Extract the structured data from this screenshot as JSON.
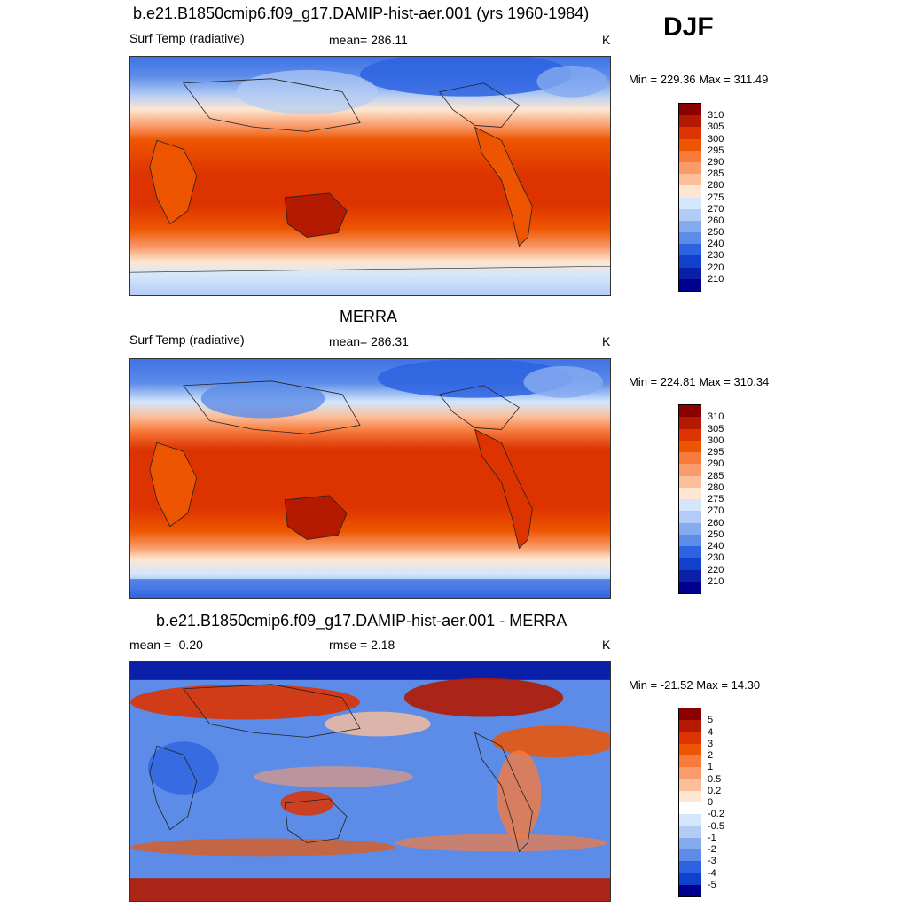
{
  "season": "DJF",
  "panels": [
    {
      "title": "b.e21.B1850cmip6.f09_g17.DAMIP-hist-aer.001 (yrs 1960-1984)",
      "left_label": "Surf Temp (radiative)",
      "center_label": "mean= 286.11",
      "units": "K",
      "minmax": "Min = 229.36 Max = 311.49",
      "colorbar_labels": [
        "310",
        "305",
        "300",
        "295",
        "290",
        "285",
        "280",
        "275",
        "270",
        "260",
        "250",
        "240",
        "230",
        "220",
        "210"
      ],
      "colors": [
        "#8b0000",
        "#b31a00",
        "#dd3300",
        "#ee5500",
        "#f77b3d",
        "#f99b6b",
        "#fbbf9a",
        "#fde7d2",
        "#d4e6fb",
        "#b3ccf5",
        "#85aaf0",
        "#5c8ce8",
        "#2d63e0",
        "#1040cc",
        "#0a20a8",
        "#00008f"
      ]
    },
    {
      "title": "MERRA",
      "left_label": "Surf Temp (radiative)",
      "center_label": "mean= 286.31",
      "units": "K",
      "minmax": "Min = 224.81 Max = 310.34",
      "colorbar_labels": [
        "310",
        "305",
        "300",
        "295",
        "290",
        "285",
        "280",
        "275",
        "270",
        "260",
        "250",
        "240",
        "230",
        "220",
        "210"
      ],
      "colors": [
        "#8b0000",
        "#b31a00",
        "#dd3300",
        "#ee5500",
        "#f77b3d",
        "#f99b6b",
        "#fbbf9a",
        "#fde7d2",
        "#d4e6fb",
        "#b3ccf5",
        "#85aaf0",
        "#5c8ce8",
        "#2d63e0",
        "#1040cc",
        "#0a20a8",
        "#00008f"
      ]
    },
    {
      "title": "b.e21.B1850cmip6.f09_g17.DAMIP-hist-aer.001 - MERRA",
      "left_label": "mean =  -0.20",
      "center_label": "rmse =   2.18",
      "units": "K",
      "minmax": "Min = -21.52 Max =  14.30",
      "colorbar_labels": [
        "5",
        "4",
        "3",
        "2",
        "1",
        "0.5",
        "0.2",
        "0",
        "-0.2",
        "-0.5",
        "-1",
        "-2",
        "-3",
        "-4",
        "-5"
      ],
      "colors": [
        "#8b0000",
        "#b31a00",
        "#dd3300",
        "#ee5500",
        "#f77b3d",
        "#f99b6b",
        "#fbbf9a",
        "#fde7d2",
        "#ffffff",
        "#d4e6fb",
        "#b3ccf5",
        "#85aaf0",
        "#5c8ce8",
        "#2d63e0",
        "#1040cc",
        "#00008f"
      ]
    }
  ]
}
